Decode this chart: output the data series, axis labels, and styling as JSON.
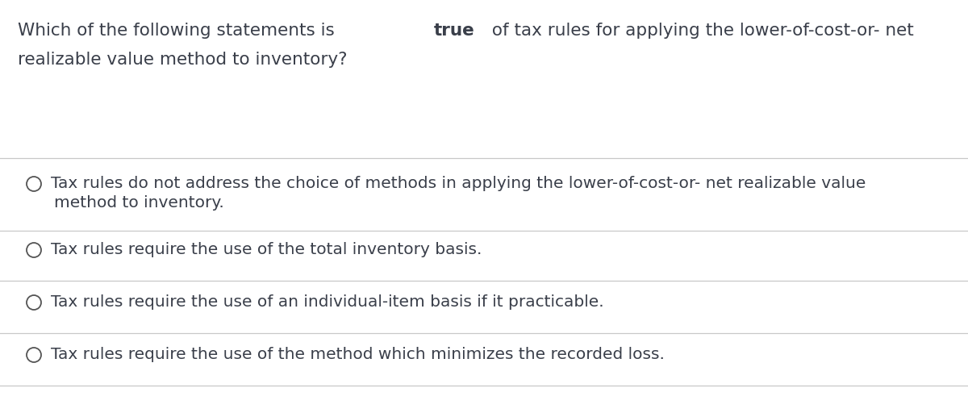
{
  "bg_color": "#ffffff",
  "text_color": "#3d3d3d",
  "line_color": "#c8c8c8",
  "question_line1_pre_bold": "Which of the following statements is ",
  "question_bold": "true",
  "question_line1_post_bold": " of tax rules for applying the lower-of-cost-or- net",
  "question_line2": "realizable value method to inventory?",
  "options": [
    [
      "Tax rules do not address the choice of methods in applying the lower-of-cost-or- net realizable value",
      "method to inventory."
    ],
    [
      "Tax rules require the use of the total inventory basis."
    ],
    [
      "Tax rules require the use of an individual-item basis if it practicable."
    ],
    [
      "Tax rules require the use of the method which minimizes the recorded loss."
    ]
  ],
  "font_size_question": 15.5,
  "font_size_options": 14.5,
  "circle_color": "#555555",
  "text_color_dark": "#3a3f4a"
}
